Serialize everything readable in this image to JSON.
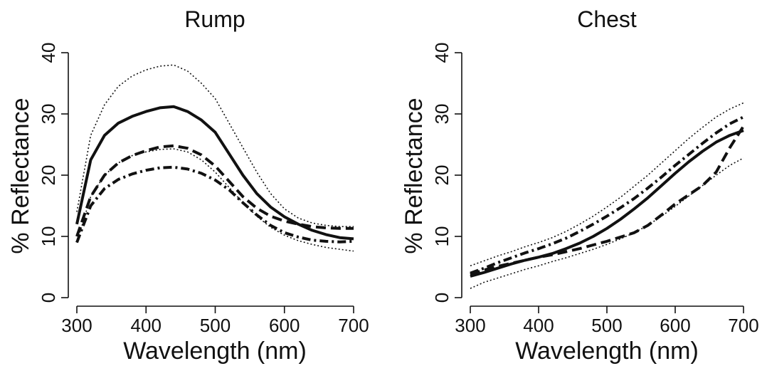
{
  "chart_data": [
    {
      "type": "line",
      "title": "Rump",
      "xlabel": "Wavelength (nm)",
      "ylabel": "% Reflectance",
      "xlim": [
        300,
        700
      ],
      "ylim": [
        0,
        40
      ],
      "x_ticks": [
        "300",
        "400",
        "500",
        "600",
        "700"
      ],
      "y_ticks": [
        "0",
        "10",
        "20",
        "30",
        "40"
      ],
      "grid": false,
      "x": [
        300,
        320,
        340,
        360,
        380,
        400,
        420,
        440,
        460,
        480,
        500,
        520,
        540,
        560,
        580,
        600,
        620,
        640,
        660,
        680,
        700
      ],
      "series": [
        {
          "style": "solid",
          "values": [
            12,
            22.5,
            26.5,
            28.5,
            29.6,
            30.4,
            31.0,
            31.2,
            30.4,
            29.0,
            27.0,
            23.5,
            20.0,
            17.0,
            14.8,
            13.2,
            12.0,
            11.0,
            10.3,
            9.8,
            9.6
          ]
        },
        {
          "style": "dashed",
          "values": [
            10,
            16.5,
            20.0,
            22.0,
            23.2,
            24.0,
            24.6,
            24.8,
            24.4,
            23.3,
            21.5,
            19.0,
            16.5,
            14.6,
            13.3,
            12.5,
            12.0,
            11.6,
            11.4,
            11.3,
            11.3
          ]
        },
        {
          "style": "dash-dot",
          "values": [
            9,
            15.0,
            17.8,
            19.3,
            20.2,
            20.8,
            21.2,
            21.3,
            21.0,
            20.3,
            19.2,
            17.6,
            15.5,
            13.5,
            11.8,
            10.6,
            9.9,
            9.4,
            9.2,
            9.1,
            9.2
          ]
        },
        {
          "style": "dotted",
          "values": [
            14,
            26.5,
            31.5,
            34.5,
            36.2,
            37.2,
            37.8,
            38.0,
            37.0,
            35.0,
            32.5,
            28.5,
            24.5,
            20.5,
            17.0,
            14.5,
            13.0,
            12.2,
            11.8,
            11.6,
            11.6
          ]
        },
        {
          "style": "dotted",
          "values": [
            9,
            16.5,
            20.0,
            22.0,
            23.2,
            23.8,
            24.2,
            24.3,
            23.8,
            22.5,
            20.5,
            18.0,
            15.5,
            13.3,
            11.5,
            10.2,
            9.3,
            8.7,
            8.2,
            7.9,
            7.6
          ]
        }
      ]
    },
    {
      "type": "line",
      "title": "Chest",
      "xlabel": "Wavelength (nm)",
      "ylabel": "% Reflectance",
      "xlim": [
        300,
        700
      ],
      "ylim": [
        0,
        40
      ],
      "x_ticks": [
        "300",
        "400",
        "500",
        "600",
        "700"
      ],
      "y_ticks": [
        "0",
        "10",
        "20",
        "30",
        "40"
      ],
      "grid": false,
      "x": [
        300,
        320,
        340,
        360,
        380,
        400,
        420,
        440,
        460,
        480,
        500,
        520,
        540,
        560,
        580,
        600,
        620,
        640,
        660,
        680,
        700
      ],
      "series": [
        {
          "style": "solid",
          "values": [
            3.5,
            4.1,
            4.8,
            5.5,
            6.1,
            6.6,
            7.2,
            8.0,
            8.9,
            10.0,
            11.3,
            12.8,
            14.5,
            16.3,
            18.3,
            20.3,
            22.2,
            23.9,
            25.4,
            26.5,
            27.3
          ]
        },
        {
          "style": "dashed",
          "values": [
            3.8,
            4.5,
            5.1,
            5.6,
            6.1,
            6.6,
            7.0,
            7.5,
            8.0,
            8.6,
            9.2,
            9.9,
            10.6,
            11.8,
            13.5,
            15.3,
            16.8,
            18.3,
            20.5,
            24.5,
            28.0
          ]
        },
        {
          "style": "dash-dot",
          "values": [
            4.0,
            4.8,
            5.7,
            6.5,
            7.3,
            8.0,
            8.8,
            9.7,
            10.8,
            12.0,
            13.3,
            14.7,
            16.2,
            17.9,
            19.7,
            21.6,
            23.4,
            25.2,
            26.9,
            28.4,
            29.5
          ]
        },
        {
          "style": "dotted",
          "values": [
            5.2,
            6.0,
            6.8,
            7.5,
            8.3,
            9.0,
            9.8,
            10.8,
            12.0,
            13.3,
            14.8,
            16.4,
            18.2,
            20.0,
            22.0,
            24.0,
            26.0,
            27.8,
            29.5,
            30.8,
            31.8
          ]
        },
        {
          "style": "dotted",
          "values": [
            1.5,
            2.5,
            3.2,
            3.9,
            4.6,
            5.2,
            5.9,
            6.5,
            7.2,
            7.9,
            8.7,
            9.6,
            10.6,
            11.8,
            13.3,
            14.9,
            16.6,
            18.3,
            20.0,
            21.6,
            22.8
          ]
        }
      ]
    }
  ]
}
